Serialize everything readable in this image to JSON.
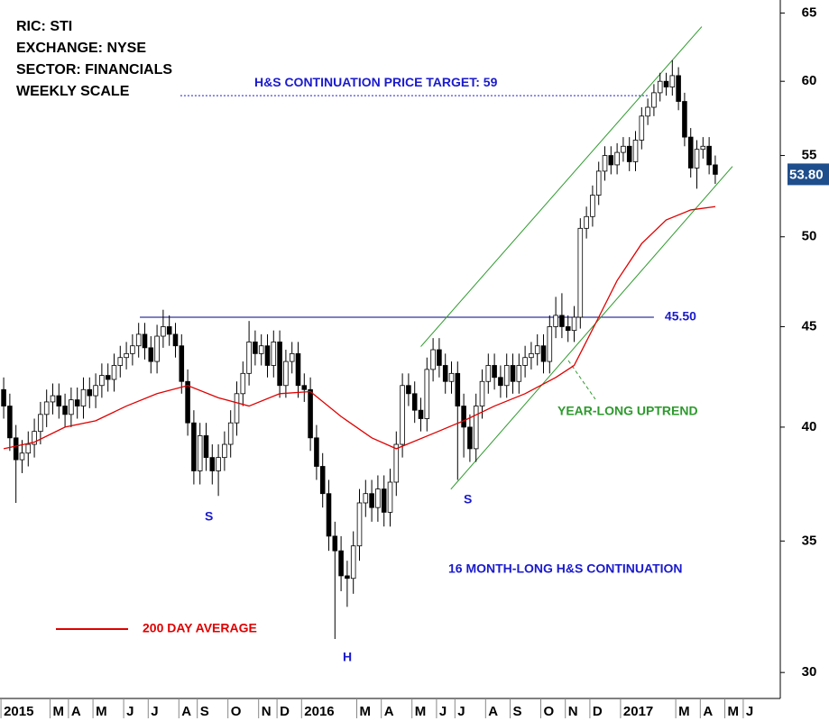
{
  "chart_data": {
    "type": "candlestick",
    "log_scale": true,
    "ylim": [
      29.1,
      66
    ],
    "yticks": [
      30,
      35,
      40,
      45,
      50,
      55,
      60,
      65
    ],
    "xlim": [
      -0.6,
      126.6
    ],
    "xticks": [
      {
        "value": 0,
        "label": "2015"
      },
      {
        "value": 8,
        "label": "M"
      },
      {
        "value": 11,
        "label": "A"
      },
      {
        "value": 15,
        "label": "M"
      },
      {
        "value": 20,
        "label": "J"
      },
      {
        "value": 24,
        "label": "J"
      },
      {
        "value": 29,
        "label": "A"
      },
      {
        "value": 32,
        "label": "S"
      },
      {
        "value": 37,
        "label": "O"
      },
      {
        "value": 42,
        "label": "N"
      },
      {
        "value": 45,
        "label": "D"
      },
      {
        "value": 49,
        "label": "2016"
      },
      {
        "value": 58,
        "label": "M"
      },
      {
        "value": 62,
        "label": "A"
      },
      {
        "value": 67,
        "label": "M"
      },
      {
        "value": 71,
        "label": "J"
      },
      {
        "value": 74,
        "label": "J"
      },
      {
        "value": 79,
        "label": "A"
      },
      {
        "value": 83,
        "label": "S"
      },
      {
        "value": 88,
        "label": "O"
      },
      {
        "value": 92,
        "label": "N"
      },
      {
        "value": 96,
        "label": "D"
      },
      {
        "value": 101,
        "label": "2017"
      },
      {
        "value": 110,
        "label": "M"
      },
      {
        "value": 114,
        "label": "A"
      },
      {
        "value": 118,
        "label": "M"
      },
      {
        "value": 121,
        "label": "J"
      }
    ],
    "up_color": "#ffffff",
    "down_color": "#000000",
    "open": [
      41.8,
      41.0,
      39.5,
      38.5,
      38.8,
      39.2,
      39.8,
      40.6,
      41.2,
      41.5,
      41.0,
      40.6,
      41.3,
      41.0,
      41.8,
      41.5,
      42.0,
      42.5,
      42.3,
      43.0,
      43.4,
      43.6,
      44.0,
      44.6,
      43.9,
      43.2,
      44.5,
      45.0,
      44.6,
      44.0,
      42.2,
      40.2,
      38.0,
      39.6,
      38.6,
      38.0,
      38.6,
      39.2,
      40.2,
      41.6,
      42.6,
      44.2,
      43.6,
      44.0,
      43.0,
      44.2,
      42.0,
      43.2,
      43.6,
      42.0,
      41.8,
      39.5,
      38.2,
      37.0,
      35.2,
      34.6,
      33.6,
      33.5,
      34.8,
      36.6,
      37.0,
      36.4,
      37.2,
      36.2,
      37.5,
      39.2,
      42.0,
      41.6,
      40.8,
      40.4,
      42.8,
      43.8,
      43.0,
      42.2,
      42.6,
      41.0,
      40.0,
      39.0,
      41.0,
      42.2,
      43.0,
      42.4,
      42.0,
      43.0,
      42.2,
      43.0,
      43.4,
      43.6,
      44.0,
      43.2,
      45.0,
      45.6,
      45.0,
      44.8,
      45.5,
      50.5,
      51.2,
      52.5,
      54.0,
      55.0,
      54.4,
      55.2,
      55.6,
      54.6,
      56.0,
      57.6,
      58.2,
      59.2,
      60.0,
      59.6,
      60.4,
      58.6,
      56.2,
      54.2,
      55.4,
      55.6,
      54.4
    ],
    "high": [
      42.4,
      41.6,
      40.1,
      39.4,
      39.8,
      40.4,
      41.2,
      41.8,
      42.1,
      42.1,
      41.6,
      41.9,
      41.9,
      42.4,
      42.4,
      42.6,
      43.1,
      43.1,
      43.6,
      44.0,
      44.2,
      44.6,
      45.2,
      45.2,
      44.5,
      45.1,
      45.9,
      45.6,
      45.2,
      44.6,
      42.8,
      40.8,
      40.2,
      40.2,
      39.2,
      39.2,
      39.8,
      40.8,
      42.2,
      43.2,
      45.3,
      44.8,
      44.6,
      44.6,
      44.8,
      44.8,
      43.8,
      44.2,
      44.2,
      42.6,
      42.4,
      40.1,
      38.8,
      37.6,
      35.8,
      35.2,
      34.2,
      35.4,
      37.2,
      37.6,
      37.6,
      37.8,
      37.8,
      38.1,
      39.8,
      42.6,
      42.6,
      42.2,
      41.4,
      43.4,
      44.4,
      44.4,
      43.6,
      43.2,
      43.2,
      41.6,
      40.6,
      41.6,
      42.8,
      43.6,
      43.6,
      43.0,
      43.6,
      43.6,
      43.6,
      44.0,
      44.2,
      44.6,
      44.6,
      45.6,
      46.6,
      46.8,
      45.6,
      46.1,
      51.1,
      51.8,
      53.1,
      54.6,
      55.6,
      55.6,
      55.8,
      56.2,
      56.2,
      56.6,
      58.2,
      58.8,
      59.8,
      60.6,
      60.6,
      61.5,
      61.0,
      59.2,
      56.8,
      56.0,
      56.2,
      56.2,
      55.0
    ],
    "low": [
      40.4,
      38.9,
      36.6,
      37.9,
      38.2,
      38.6,
      39.2,
      40.0,
      40.6,
      40.4,
      40.0,
      40.0,
      40.4,
      40.4,
      40.9,
      40.9,
      41.4,
      41.7,
      41.7,
      42.4,
      42.8,
      43.0,
      43.4,
      43.3,
      42.6,
      42.6,
      43.9,
      44.0,
      43.4,
      41.6,
      39.6,
      37.4,
      37.4,
      38.0,
      37.4,
      36.9,
      38.0,
      38.6,
      39.6,
      41.0,
      42.0,
      43.0,
      43.0,
      42.4,
      42.4,
      41.4,
      41.4,
      42.6,
      41.4,
      41.2,
      38.9,
      37.6,
      36.4,
      34.6,
      31.2,
      33.0,
      32.4,
      32.9,
      34.2,
      36.0,
      35.8,
      35.8,
      35.6,
      35.6,
      36.9,
      38.6,
      41.0,
      40.2,
      39.8,
      39.8,
      42.2,
      42.4,
      41.6,
      41.6,
      37.6,
      38.6,
      38.4,
      38.4,
      40.4,
      41.6,
      41.8,
      41.4,
      41.4,
      41.6,
      41.6,
      42.4,
      42.8,
      43.0,
      42.6,
      42.6,
      44.4,
      44.4,
      44.2,
      44.2,
      44.9,
      49.9,
      50.6,
      51.9,
      53.4,
      53.8,
      53.8,
      54.6,
      54.0,
      54.0,
      55.4,
      57.0,
      57.6,
      58.6,
      59.0,
      59.0,
      58.0,
      55.6,
      53.6,
      52.9,
      54.8,
      53.8,
      53.2
    ],
    "close": [
      41.0,
      39.5,
      38.5,
      38.8,
      39.2,
      39.8,
      40.6,
      41.2,
      41.5,
      41.0,
      40.6,
      41.3,
      41.0,
      41.8,
      41.5,
      42.0,
      42.5,
      42.3,
      43.0,
      43.4,
      43.6,
      44.0,
      44.6,
      43.9,
      43.2,
      44.5,
      45.0,
      44.6,
      44.0,
      42.2,
      40.2,
      38.0,
      39.6,
      38.6,
      38.0,
      38.6,
      39.2,
      40.2,
      41.6,
      42.6,
      44.2,
      43.6,
      44.0,
      43.0,
      44.2,
      42.0,
      43.2,
      43.6,
      42.0,
      41.8,
      39.5,
      38.2,
      37.0,
      35.2,
      34.6,
      33.6,
      33.5,
      34.8,
      36.6,
      37.0,
      36.4,
      37.2,
      36.2,
      37.5,
      39.2,
      42.0,
      41.6,
      40.8,
      40.4,
      42.8,
      43.8,
      43.0,
      42.2,
      42.6,
      41.0,
      40.0,
      39.0,
      41.0,
      42.2,
      43.0,
      42.4,
      42.0,
      43.0,
      42.2,
      43.0,
      43.4,
      43.6,
      44.0,
      43.2,
      45.0,
      45.6,
      45.0,
      44.8,
      45.5,
      50.5,
      51.2,
      52.5,
      54.0,
      55.0,
      54.4,
      55.2,
      55.6,
      54.6,
      56.0,
      57.6,
      58.2,
      59.2,
      60.0,
      59.6,
      60.4,
      58.6,
      56.2,
      54.2,
      55.4,
      55.6,
      54.4,
      53.8
    ],
    "last_price": {
      "value": 53.8,
      "label": "53.80",
      "color": "#1f4e8c"
    },
    "series": [
      {
        "name": "200 DAY AVERAGE",
        "color": "#e00000",
        "x": [
          0,
          5,
          10,
          15,
          20,
          25,
          30,
          35,
          40,
          45,
          50,
          55,
          60,
          64,
          70,
          75,
          80,
          85,
          90,
          93,
          97,
          100,
          104,
          108,
          112,
          116
        ],
        "values": [
          39.0,
          39.3,
          40.0,
          40.3,
          41.0,
          41.6,
          42.0,
          41.4,
          41.0,
          41.6,
          41.7,
          40.5,
          39.5,
          39.0,
          39.7,
          40.3,
          41.0,
          41.6,
          42.4,
          43.0,
          45.5,
          47.5,
          49.6,
          51.0,
          51.6,
          51.8
        ]
      }
    ],
    "channel": {
      "color": "#2e9a2e",
      "lines": [
        {
          "x": [
            68,
            113.8
          ],
          "values": [
            43.96,
            63.97
          ]
        },
        {
          "x": [
            72.9,
            118.8
          ],
          "values": [
            37.19,
            54.3
          ]
        }
      ]
    },
    "neckline": {
      "value": 45.5,
      "label": "45.50",
      "x": [
        22.2,
        106
      ],
      "color": "#000080"
    },
    "target": {
      "value": 59,
      "label": "H&S CONTINUATION PRICE TARGET: 59",
      "x": [
        28.8,
        105.3
      ],
      "color": "#1a1acd"
    },
    "info": [
      "RIC: STI",
      "EXCHANGE: NYSE",
      "SECTOR: FINANCIALS",
      "WEEKLY SCALE"
    ],
    "uptrend_label": "YEAR-LONG UPTREND",
    "pattern_label": "16 MONTH-LONG H&S CONTINUATION",
    "pattern_points": [
      "S",
      "H",
      "S"
    ]
  }
}
